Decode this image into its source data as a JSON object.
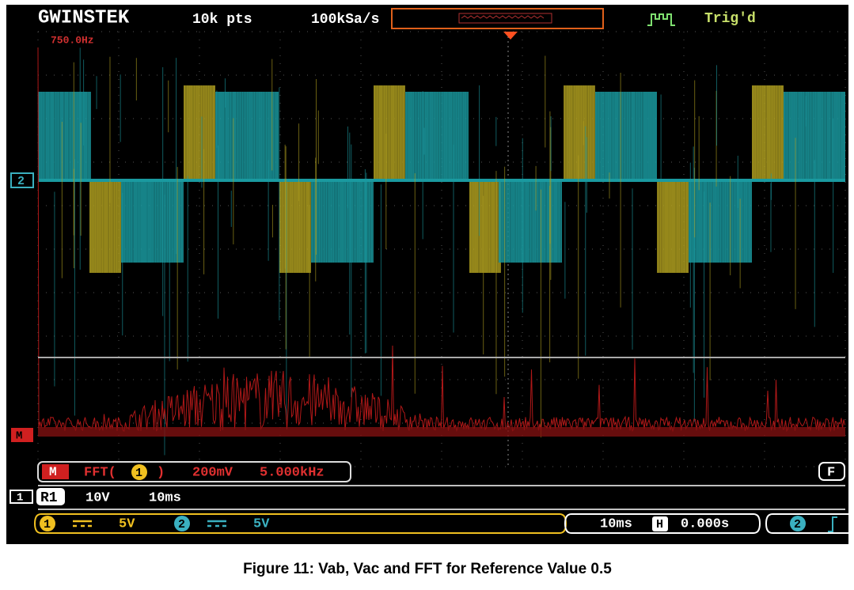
{
  "header": {
    "brand": "GWINSTEK",
    "points": "10k pts",
    "rate": "100kSa/s",
    "trigger_status": "Trig'd"
  },
  "screen": {
    "cursor_label": "750.0Hz",
    "channel_marker": "2",
    "math_marker": "M"
  },
  "math_bar": {
    "badge": "M",
    "function": "FFT(",
    "source": "1",
    "close": ")",
    "scale": "200mV",
    "span": "5.000kHz",
    "mode": "F"
  },
  "reference_bar": {
    "channel": "1",
    "badge": "R1",
    "volts": "10V",
    "time": "10ms"
  },
  "status_bar": {
    "ch1": "1",
    "ch1_scale": "5V",
    "ch2": "2",
    "ch2_scale": "5V",
    "timebase": "10ms",
    "h_icon": "H",
    "position": "0.000s",
    "trigger_source": "2"
  },
  "caption": "Figure 11: Vab, Vac and FFT for Reference Value 0.5"
}
